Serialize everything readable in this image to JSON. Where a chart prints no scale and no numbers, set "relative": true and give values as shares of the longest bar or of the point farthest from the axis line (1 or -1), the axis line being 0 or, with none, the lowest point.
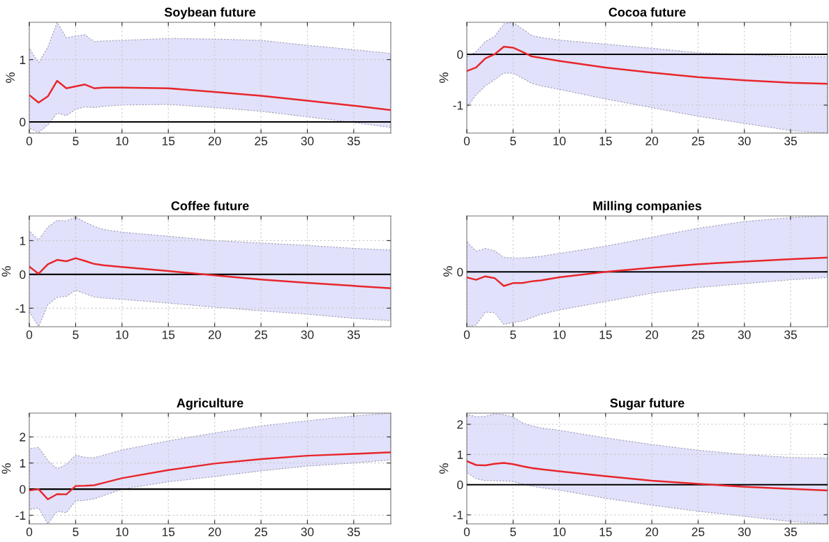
{
  "chart_data": [
    {
      "type": "line",
      "title": "Soybean future",
      "ylabel": "%",
      "xlim": [
        0,
        39
      ],
      "xticks": [
        0,
        5,
        10,
        15,
        20,
        25,
        30,
        35
      ],
      "ylim": [
        -0.18,
        1.6
      ],
      "yticks": [
        0,
        1
      ],
      "grid": true,
      "ref_lines": [
        {
          "axis": "y",
          "value": 0,
          "color": "#000000"
        }
      ],
      "series": [
        {
          "color": "#e8262b",
          "x": [
            0,
            1,
            2,
            3,
            4,
            5,
            6,
            7,
            8,
            10,
            15,
            20,
            25,
            30,
            35,
            39
          ],
          "values": [
            0.43,
            0.31,
            0.41,
            0.66,
            0.54,
            0.57,
            0.6,
            0.54,
            0.55,
            0.55,
            0.54,
            0.48,
            0.42,
            0.34,
            0.26,
            0.19
          ],
          "upper": [
            1.18,
            0.95,
            1.2,
            1.6,
            1.35,
            1.38,
            1.4,
            1.29,
            1.3,
            1.31,
            1.34,
            1.33,
            1.31,
            1.23,
            1.16,
            1.1
          ],
          "lower": [
            -0.1,
            -0.17,
            -0.05,
            0.14,
            0.1,
            0.2,
            0.24,
            0.23,
            0.25,
            0.27,
            0.28,
            0.23,
            0.17,
            0.08,
            -0.01,
            -0.09
          ]
        }
      ]
    },
    {
      "type": "line",
      "title": "Cocoa future",
      "ylabel": "%",
      "xlim": [
        0,
        39
      ],
      "xticks": [
        0,
        5,
        10,
        15,
        20,
        25,
        30,
        35
      ],
      "ylim": [
        -1.55,
        0.63
      ],
      "yticks": [
        -1,
        0
      ],
      "grid": true,
      "ref_lines": [
        {
          "axis": "y",
          "value": 0,
          "color": "#000000"
        }
      ],
      "series": [
        {
          "color": "#e8262b",
          "x": [
            0,
            1,
            2,
            3,
            4,
            5,
            6,
            7,
            8,
            10,
            15,
            20,
            25,
            30,
            35,
            39
          ],
          "values": [
            -0.33,
            -0.26,
            -0.08,
            0.0,
            0.15,
            0.13,
            0.05,
            -0.04,
            -0.07,
            -0.13,
            -0.26,
            -0.36,
            -0.45,
            -0.51,
            -0.56,
            -0.58
          ],
          "upper": [
            -0.05,
            0.05,
            0.25,
            0.35,
            0.6,
            0.63,
            0.5,
            0.37,
            0.33,
            0.28,
            0.2,
            0.12,
            0.03,
            0.0,
            -0.05,
            -0.05
          ],
          "lower": [
            -1.05,
            -0.8,
            -0.62,
            -0.5,
            -0.37,
            -0.37,
            -0.47,
            -0.57,
            -0.62,
            -0.69,
            -0.88,
            -1.05,
            -1.22,
            -1.36,
            -1.5,
            -1.55
          ]
        }
      ]
    },
    {
      "type": "line",
      "title": "Coffee future",
      "ylabel": "%",
      "xlim": [
        0,
        39
      ],
      "xticks": [
        0,
        5,
        10,
        15,
        20,
        25,
        30,
        35
      ],
      "ylim": [
        -1.55,
        1.73
      ],
      "yticks": [
        -1,
        0,
        1
      ],
      "grid": true,
      "ref_lines": [
        {
          "axis": "y",
          "value": 0,
          "color": "#000000"
        }
      ],
      "series": [
        {
          "color": "#e8262b",
          "x": [
            0,
            1,
            2,
            3,
            4,
            5,
            6,
            7,
            8,
            10,
            15,
            20,
            25,
            30,
            35,
            39
          ],
          "values": [
            0.23,
            0.02,
            0.3,
            0.43,
            0.39,
            0.48,
            0.4,
            0.31,
            0.27,
            0.22,
            0.1,
            -0.03,
            -0.15,
            -0.25,
            -0.34,
            -0.41
          ],
          "upper": [
            1.28,
            1.02,
            1.4,
            1.6,
            1.58,
            1.7,
            1.55,
            1.42,
            1.33,
            1.25,
            1.13,
            1.0,
            0.93,
            0.86,
            0.77,
            0.72
          ],
          "lower": [
            -1.1,
            -1.55,
            -0.9,
            -0.68,
            -0.65,
            -0.47,
            -0.57,
            -0.67,
            -0.7,
            -0.74,
            -0.85,
            -0.97,
            -1.08,
            -1.18,
            -1.3,
            -1.37
          ]
        }
      ]
    },
    {
      "type": "line",
      "title": "Milling companies",
      "ylabel": "%",
      "relative": true,
      "xlim": [
        0,
        39
      ],
      "xticks": [
        0,
        5,
        10,
        15,
        20,
        25,
        30,
        35
      ],
      "grid": true,
      "ref_lines": [
        {
          "axis": "y",
          "value": 0,
          "label": "0",
          "color": "#000000"
        }
      ],
      "series": [
        {
          "color": "#e8262b",
          "x": [
            0,
            1,
            2,
            3,
            4,
            5,
            6,
            7,
            8,
            10,
            15,
            20,
            25,
            30,
            35,
            39
          ],
          "values": [
            -0.39,
            -0.55,
            -0.31,
            -0.43,
            -0.98,
            -0.78,
            -0.78,
            -0.66,
            -0.59,
            -0.37,
            0,
            0.3,
            0.54,
            0.72,
            0.89,
            1.0
          ],
          "upper": [
            2.11,
            1.45,
            1.64,
            1.48,
            1.02,
            0.98,
            0.98,
            1.02,
            1.09,
            1.29,
            1.8,
            2.42,
            3.05,
            3.52,
            3.79,
            3.91
          ],
          "lower": [
            -3.83,
            -3.71,
            -2.81,
            -2.85,
            -3.67,
            -3.52,
            -3.44,
            -3.2,
            -2.97,
            -2.66,
            -2.07,
            -1.48,
            -1.09,
            -0.82,
            -0.55,
            -0.39
          ]
        }
      ]
    },
    {
      "type": "line",
      "title": "Agriculture",
      "ylabel": "%",
      "xlim": [
        0,
        39
      ],
      "xticks": [
        0,
        5,
        10,
        15,
        20,
        25,
        30,
        35
      ],
      "ylim": [
        -1.33,
        2.91
      ],
      "yticks": [
        -1,
        0,
        1,
        2
      ],
      "grid": true,
      "ref_lines": [
        {
          "axis": "y",
          "value": 0,
          "color": "#000000"
        }
      ],
      "series": [
        {
          "color": "#e8262b",
          "x": [
            0,
            1,
            2,
            3,
            4,
            5,
            6,
            7,
            8,
            10,
            15,
            20,
            25,
            30,
            35,
            39
          ],
          "values": [
            -0.05,
            0.0,
            -0.39,
            -0.19,
            -0.2,
            0.12,
            0.13,
            0.15,
            0.24,
            0.42,
            0.73,
            0.98,
            1.15,
            1.28,
            1.35,
            1.41
          ],
          "upper": [
            1.55,
            1.6,
            1.1,
            0.78,
            0.95,
            1.3,
            1.22,
            1.2,
            1.3,
            1.5,
            1.85,
            2.15,
            2.42,
            2.62,
            2.8,
            2.91
          ],
          "lower": [
            -0.78,
            -0.72,
            -1.33,
            -0.85,
            -0.9,
            -0.45,
            -0.43,
            -0.37,
            -0.25,
            0.0,
            0.28,
            0.48,
            0.7,
            0.88,
            1.0,
            1.12
          ]
        }
      ]
    },
    {
      "type": "line",
      "title": "Sugar future",
      "ylabel": "%",
      "xlim": [
        0,
        39
      ],
      "xticks": [
        0,
        5,
        10,
        15,
        20,
        25,
        30,
        35
      ],
      "ylim": [
        -1.3,
        2.37
      ],
      "yticks": [
        -1,
        0,
        1,
        2
      ],
      "grid": true,
      "ref_lines": [
        {
          "axis": "y",
          "value": 0,
          "color": "#000000"
        }
      ],
      "series": [
        {
          "color": "#e8262b",
          "x": [
            0,
            1,
            2,
            3,
            4,
            5,
            6,
            7,
            8,
            10,
            15,
            20,
            25,
            30,
            35,
            39
          ],
          "values": [
            0.78,
            0.65,
            0.64,
            0.69,
            0.72,
            0.68,
            0.61,
            0.55,
            0.51,
            0.44,
            0.28,
            0.13,
            0.03,
            -0.07,
            -0.14,
            -0.19
          ],
          "upper": [
            2.33,
            2.25,
            2.26,
            2.35,
            2.32,
            2.24,
            2.05,
            1.95,
            1.88,
            1.8,
            1.55,
            1.33,
            1.14,
            1.0,
            0.9,
            0.88
          ],
          "lower": [
            0.4,
            0.2,
            0.13,
            0.13,
            0.12,
            0.1,
            0.02,
            -0.05,
            -0.1,
            -0.18,
            -0.45,
            -0.68,
            -0.88,
            -1.05,
            -1.22,
            -1.3
          ]
        }
      ]
    }
  ]
}
